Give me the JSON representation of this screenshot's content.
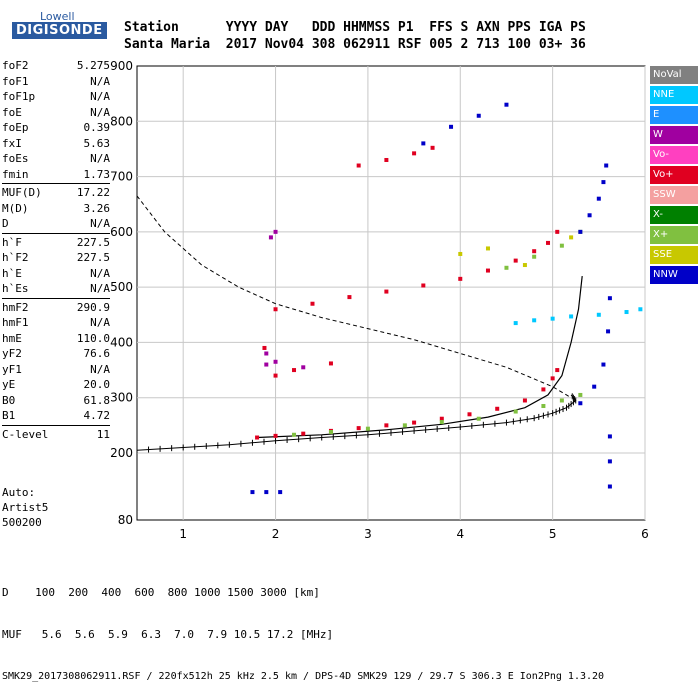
{
  "logo": {
    "top": "Lowell",
    "main": "DIGISONDE"
  },
  "header": {
    "line1": "Station      YYYY DAY   DDD HHMMSS P1  FFS S AXN PPS IGA PS",
    "line2": "Santa Maria  2017 Nov04 308 062911 RSF 005 2 713 100 03+ 36"
  },
  "params": [
    [
      {
        "k": "foF2",
        "v": "5.275"
      },
      {
        "k": "foF1",
        "v": "N/A"
      },
      {
        "k": "foF1p",
        "v": "N/A"
      },
      {
        "k": "foE",
        "v": "N/A"
      },
      {
        "k": "foEp",
        "v": "0.39"
      },
      {
        "k": "fxI",
        "v": "5.63"
      },
      {
        "k": "foEs",
        "v": "N/A"
      },
      {
        "k": "fmin",
        "v": "1.73"
      }
    ],
    [
      {
        "k": "MUF(D)",
        "v": "17.22"
      },
      {
        "k": "M(D)",
        "v": "3.26"
      },
      {
        "k": "D",
        "v": "N/A"
      }
    ],
    [
      {
        "k": "h`F",
        "v": "227.5"
      },
      {
        "k": "h`F2",
        "v": "227.5"
      },
      {
        "k": "h`E",
        "v": "N/A"
      },
      {
        "k": "h`Es",
        "v": "N/A"
      }
    ],
    [
      {
        "k": "hmF2",
        "v": "290.9"
      },
      {
        "k": "hmF1",
        "v": "N/A"
      },
      {
        "k": "hmE",
        "v": "110.0"
      },
      {
        "k": "yF2",
        "v": "76.6"
      },
      {
        "k": "yF1",
        "v": "N/A"
      },
      {
        "k": "yE",
        "v": "20.0"
      },
      {
        "k": "B0",
        "v": "61.8"
      },
      {
        "k": "B1",
        "v": "4.72"
      }
    ],
    [
      {
        "k": "C-level",
        "v": "11"
      }
    ]
  ],
  "auto": {
    "l1": "Auto:",
    "l2": "Artist5",
    "l3": "500200"
  },
  "legend": [
    {
      "label": "NoVal",
      "color": "#808080"
    },
    {
      "label": "NNE",
      "color": "#00c8ff"
    },
    {
      "label": "E",
      "color": "#1e90ff"
    },
    {
      "label": "W",
      "color": "#a000a0"
    },
    {
      "label": "Vo-",
      "color": "#ff40c0"
    },
    {
      "label": "Vo+",
      "color": "#e00020"
    },
    {
      "label": "SSW",
      "color": "#f4a0a0"
    },
    {
      "label": "X-",
      "color": "#008000"
    },
    {
      "label": "X+",
      "color": "#80c040"
    },
    {
      "label": "SSE",
      "color": "#c8c800"
    },
    {
      "label": "NNW",
      "color": "#0000c8"
    }
  ],
  "footer": {
    "line1": "D    100  200  400  600  800 1000 1500 3000 [km]",
    "line2": "MUF   5.6  5.6  5.9  6.3  7.0  7.9 10.5 17.2 [MHz]",
    "line3": "SMK29_2017308062911.RSF / 220fx512h 25 kHz 2.5 km / DPS-4D SMK29 129 / 29.7 S 306.3 E Ion2Png 1.3.20"
  },
  "chart_data": {
    "type": "scatter",
    "xlim": [
      0.5,
      6
    ],
    "ylim": [
      80,
      900
    ],
    "xticks": [
      1,
      2,
      3,
      4,
      5,
      6
    ],
    "yticks": [
      80,
      200,
      300,
      400,
      500,
      600,
      700,
      800,
      900
    ],
    "grid": true,
    "legend_placement": "right",
    "series": [
      {
        "name": "Vo+",
        "color": "#e00020",
        "points": [
          [
            1.8,
            228
          ],
          [
            2.0,
            231
          ],
          [
            2.3,
            235
          ],
          [
            2.6,
            240
          ],
          [
            2.9,
            245
          ],
          [
            3.2,
            250
          ],
          [
            3.5,
            255
          ],
          [
            3.8,
            262
          ],
          [
            4.1,
            270
          ],
          [
            4.4,
            280
          ],
          [
            4.7,
            295
          ],
          [
            4.9,
            315
          ],
          [
            5.0,
            335
          ],
          [
            5.05,
            350
          ],
          [
            2.0,
            460
          ],
          [
            2.4,
            470
          ],
          [
            2.8,
            482
          ],
          [
            3.2,
            492
          ],
          [
            3.6,
            503
          ],
          [
            4.0,
            515
          ],
          [
            4.3,
            530
          ],
          [
            4.6,
            548
          ],
          [
            4.8,
            565
          ],
          [
            4.95,
            580
          ],
          [
            5.05,
            600
          ],
          [
            2.9,
            720
          ],
          [
            3.2,
            730
          ],
          [
            3.5,
            742
          ],
          [
            3.7,
            752
          ],
          [
            2.0,
            340
          ],
          [
            2.2,
            350
          ],
          [
            2.6,
            362
          ],
          [
            1.88,
            390
          ]
        ]
      },
      {
        "name": "X+",
        "color": "#80c040",
        "points": [
          [
            2.2,
            233
          ],
          [
            2.6,
            238
          ],
          [
            3.0,
            244
          ],
          [
            3.4,
            250
          ],
          [
            3.8,
            256
          ],
          [
            4.2,
            262
          ],
          [
            4.6,
            275
          ],
          [
            4.9,
            285
          ],
          [
            5.1,
            295
          ],
          [
            5.3,
            305
          ],
          [
            4.5,
            535
          ],
          [
            4.8,
            555
          ],
          [
            5.1,
            575
          ],
          [
            5.3,
            600
          ]
        ]
      },
      {
        "name": "NNW",
        "color": "#0000c8",
        "points": [
          [
            5.3,
            290
          ],
          [
            5.45,
            320
          ],
          [
            5.55,
            360
          ],
          [
            5.6,
            420
          ],
          [
            5.62,
            480
          ],
          [
            5.3,
            600
          ],
          [
            5.4,
            630
          ],
          [
            5.5,
            660
          ],
          [
            5.55,
            690
          ],
          [
            5.58,
            720
          ],
          [
            5.62,
            230
          ],
          [
            5.62,
            185
          ],
          [
            5.62,
            140
          ],
          [
            3.6,
            760
          ],
          [
            3.9,
            790
          ],
          [
            4.2,
            810
          ],
          [
            4.5,
            830
          ],
          [
            1.75,
            130
          ],
          [
            1.9,
            130
          ],
          [
            2.05,
            130
          ]
        ]
      },
      {
        "name": "NNE",
        "color": "#00c8ff",
        "points": [
          [
            4.6,
            435
          ],
          [
            4.8,
            440
          ],
          [
            5.0,
            443
          ],
          [
            5.2,
            447
          ],
          [
            5.5,
            450
          ],
          [
            5.8,
            455
          ],
          [
            5.95,
            460
          ]
        ]
      },
      {
        "name": "W",
        "color": "#a000a0",
        "points": [
          [
            1.9,
            360
          ],
          [
            1.9,
            380
          ],
          [
            2.0,
            365
          ],
          [
            2.3,
            355
          ],
          [
            2.0,
            600
          ],
          [
            1.95,
            590
          ]
        ]
      },
      {
        "name": "SSE",
        "color": "#c8c800",
        "points": [
          [
            4.0,
            560
          ],
          [
            4.3,
            570
          ],
          [
            4.7,
            540
          ],
          [
            5.2,
            590
          ]
        ]
      }
    ]
  }
}
